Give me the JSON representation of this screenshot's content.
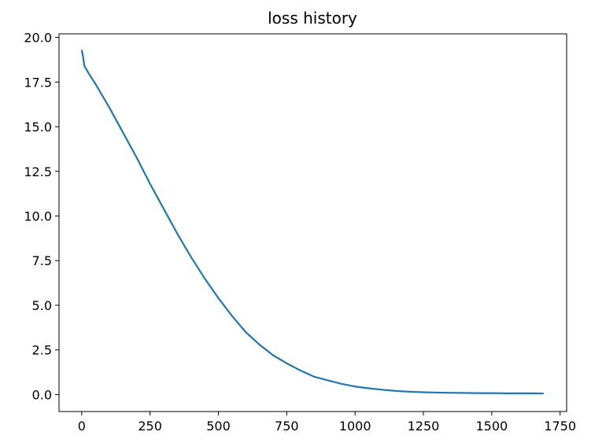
{
  "chart_data": {
    "type": "line",
    "title": "loss history",
    "xlabel": "",
    "ylabel": "",
    "xlim": [
      -83,
      1774
    ],
    "ylim": [
      -0.95,
      20.2
    ],
    "xticks": [
      0,
      250,
      500,
      750,
      1000,
      1250,
      1500,
      1750
    ],
    "xtick_labels": [
      "0",
      "250",
      "500",
      "750",
      "1000",
      "1250",
      "1500",
      "1750"
    ],
    "yticks": [
      0.0,
      2.5,
      5.0,
      7.5,
      10.0,
      12.5,
      15.0,
      17.5,
      20.0
    ],
    "ytick_labels": [
      "0.0",
      "2.5",
      "5.0",
      "7.5",
      "10.0",
      "12.5",
      "15.0",
      "17.5",
      "20.0"
    ],
    "grid": false,
    "series": [
      {
        "color": "#1f77b4",
        "x": [
          0,
          5,
          10,
          25,
          50,
          100,
          150,
          200,
          250,
          300,
          350,
          400,
          450,
          500,
          550,
          600,
          650,
          700,
          750,
          800,
          850,
          900,
          950,
          1000,
          1050,
          1100,
          1150,
          1200,
          1250,
          1300,
          1350,
          1400,
          1450,
          1500,
          1550,
          1600,
          1650,
          1690
        ],
        "y": [
          19.3,
          18.9,
          18.4,
          18.0,
          17.4,
          16.1,
          14.7,
          13.3,
          11.8,
          10.4,
          9.0,
          7.7,
          6.5,
          5.4,
          4.4,
          3.5,
          2.8,
          2.2,
          1.75,
          1.35,
          1.0,
          0.8,
          0.6,
          0.45,
          0.35,
          0.27,
          0.2,
          0.16,
          0.13,
          0.11,
          0.1,
          0.09,
          0.08,
          0.08,
          0.07,
          0.07,
          0.07,
          0.06
        ]
      }
    ]
  }
}
